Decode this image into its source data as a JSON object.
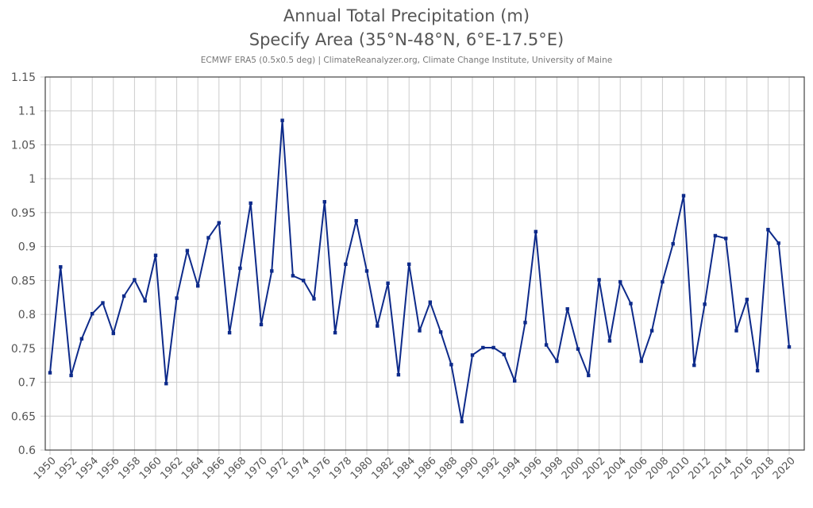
{
  "chart_data": {
    "type": "line",
    "title": "Annual Total Precipitation (m)",
    "subtitle": "Specify Area (35°N-48°N, 6°E-17.5°E)",
    "source": "ECMWF ERA5 (0.5x0.5 deg) | ClimateReanalyzer.org, Climate Change Institute, University of Maine",
    "xlabel": "",
    "ylabel": "",
    "ylim": [
      0.6,
      1.15
    ],
    "xlim": [
      1950,
      2020
    ],
    "yticks": [
      "0.6",
      "0.65",
      "0.7",
      "0.75",
      "0.8",
      "0.85",
      "0.9",
      "0.95",
      "1",
      "1.05",
      "1.1",
      "1.15"
    ],
    "xticks": [
      "1950",
      "1952",
      "1954",
      "1956",
      "1958",
      "1960",
      "1962",
      "1964",
      "1966",
      "1968",
      "1970",
      "1972",
      "1974",
      "1976",
      "1978",
      "1980",
      "1982",
      "1984",
      "1986",
      "1988",
      "1990",
      "1992",
      "1994",
      "1996",
      "1998",
      "2000",
      "2002",
      "2004",
      "2006",
      "2008",
      "2010",
      "2012",
      "2014",
      "2016",
      "2018",
      "2020"
    ],
    "grid": true,
    "legend": "none",
    "series": [
      {
        "name": "Annual Total Precipitation",
        "color": "#0d2a8a",
        "x": [
          1950,
          1951,
          1952,
          1953,
          1954,
          1955,
          1956,
          1957,
          1958,
          1959,
          1960,
          1961,
          1962,
          1963,
          1964,
          1965,
          1966,
          1967,
          1968,
          1969,
          1970,
          1971,
          1972,
          1973,
          1974,
          1975,
          1976,
          1977,
          1978,
          1979,
          1980,
          1981,
          1982,
          1983,
          1984,
          1985,
          1986,
          1987,
          1988,
          1989,
          1990,
          1991,
          1992,
          1993,
          1994,
          1995,
          1996,
          1997,
          1998,
          1999,
          2000,
          2001,
          2002,
          2003,
          2004,
          2005,
          2006,
          2007,
          2008,
          2009,
          2010,
          2011,
          2012,
          2013,
          2014,
          2015,
          2016,
          2017,
          2018,
          2019,
          2020
        ],
        "values": [
          0.714,
          0.87,
          0.71,
          0.764,
          0.801,
          0.817,
          0.772,
          0.827,
          0.851,
          0.82,
          0.887,
          0.698,
          0.824,
          0.894,
          0.842,
          0.913,
          0.935,
          0.773,
          0.868,
          0.964,
          0.785,
          0.864,
          1.086,
          0.857,
          0.85,
          0.823,
          0.966,
          0.773,
          0.874,
          0.938,
          0.864,
          0.783,
          0.846,
          0.711,
          0.874,
          0.776,
          0.818,
          0.774,
          0.726,
          0.642,
          0.74,
          0.751,
          0.751,
          0.741,
          0.702,
          0.788,
          0.922,
          0.755,
          0.731,
          0.808,
          0.749,
          0.71,
          0.851,
          0.761,
          0.848,
          0.816,
          0.731,
          0.776,
          0.848,
          0.904,
          0.975,
          0.725,
          0.815,
          0.916,
          0.912,
          0.776,
          0.822,
          0.717,
          0.925,
          0.905,
          0.752
        ]
      }
    ]
  }
}
